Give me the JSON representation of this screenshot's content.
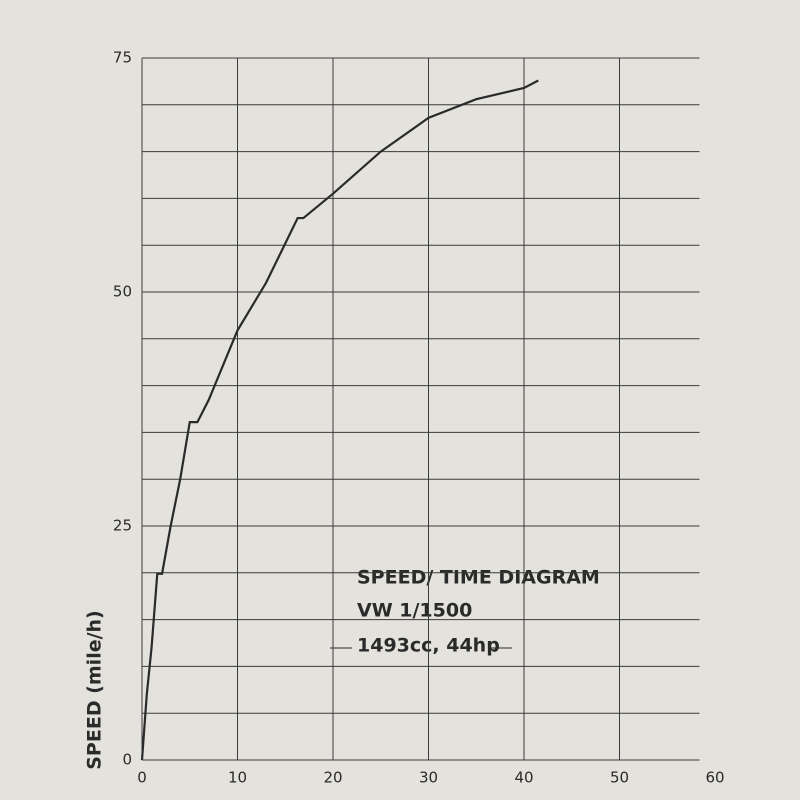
{
  "chart_data": {
    "type": "line",
    "x": [
      0,
      0.5,
      1,
      1.6,
      2.1,
      3,
      4,
      5,
      5.8,
      7,
      10,
      13,
      16.3,
      16.9,
      20,
      25,
      30,
      35,
      40,
      41.5
    ],
    "series": [
      {
        "name": "VW 1/1500",
        "color": "#2a2a2a",
        "values": [
          0,
          7,
          12,
          19.9,
          19.9,
          25,
          30,
          36.1,
          36.1,
          38.5,
          45.9,
          51,
          57.9,
          57.9,
          60.5,
          65,
          68.6,
          70.6,
          71.8,
          72.6
        ]
      }
    ],
    "xlim": [
      0,
      60
    ],
    "xticks": [
      0,
      10,
      20,
      30,
      40,
      50,
      60
    ],
    "ylim": [
      0,
      75
    ],
    "yticks": [
      0,
      25,
      50,
      75
    ],
    "y_minor_grid": [
      5,
      10,
      15,
      20,
      30,
      35,
      40,
      45,
      55,
      60,
      65,
      70
    ],
    "ylabel": "SPEED  (mile/h)",
    "annotations": [
      "SPEED/ TIME DIAGRAM",
      "VW 1/1500",
      "1493cc, 44hp"
    ],
    "grid": true
  }
}
